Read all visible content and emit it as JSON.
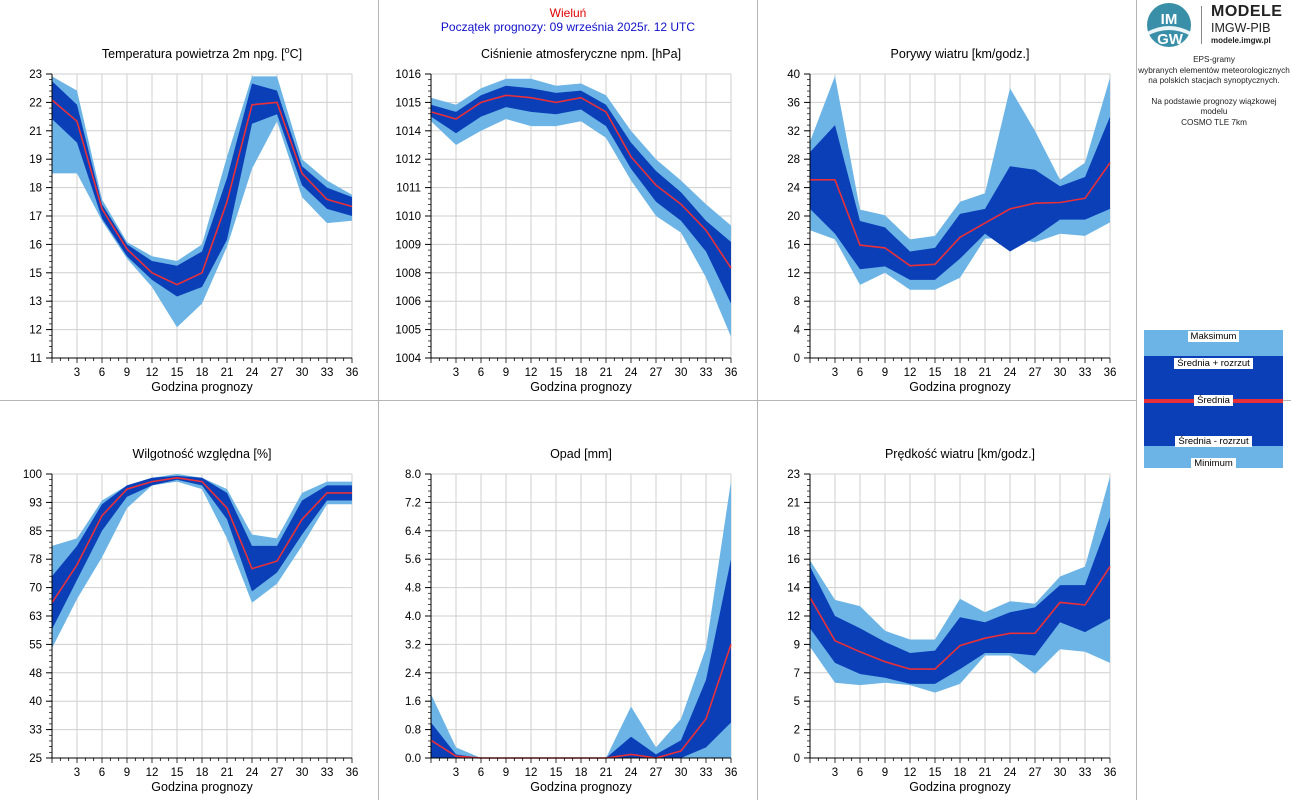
{
  "header": {
    "station": "Wieluń",
    "run": "Początek prognozy: 09 września 2025r. 12 UTC"
  },
  "branding": {
    "logo_text_top": "IM",
    "logo_text_bottom": "GW",
    "line1": "MODELE",
    "line2": "IMGW-PIB",
    "line3": "modele.imgw.pl"
  },
  "description": {
    "line1": "EPS-gramy",
    "line2": "wybranych elementów meteorologicznych",
    "line3": "na polskich stacjach  synoptycznych.",
    "line4": "Na podstawie prognozy wiązkowej modelu",
    "line5": "COSMO TLE 7km"
  },
  "legend": {
    "max": "Maksimum",
    "mean_plus": "Średnia + rozrzut",
    "mean": "Średnia",
    "mean_minus": "Średnia - rozrzut",
    "min": "Minimum"
  },
  "colors": {
    "outer_band": "#6cb4e6",
    "inner_band": "#0a3fb8",
    "mean_line": "#e8303a",
    "grid": "#cfcfcf"
  },
  "chart_data": [
    {
      "id": "temp",
      "type": "area",
      "title": "Temperatura powietrza 2m npg. [oC]",
      "xlabel": "Godzina prognozy",
      "x": [
        0,
        3,
        6,
        9,
        12,
        15,
        18,
        21,
        24,
        27,
        30,
        33,
        36
      ],
      "xticks": [
        3,
        6,
        9,
        12,
        15,
        18,
        21,
        24,
        27,
        30,
        33,
        36
      ],
      "ylim": [
        11,
        23
      ],
      "yticks": [
        "11",
        "12",
        "13",
        "15",
        "16",
        "17",
        "18",
        "19",
        "21",
        "22",
        "23"
      ],
      "series": [
        {
          "name": "Maksimum",
          "values": [
            22.9,
            22.3,
            17.7,
            15.9,
            15.3,
            15.1,
            15.8,
            19.5,
            22.9,
            22.9,
            19.4,
            18.5,
            17.9
          ]
        },
        {
          "name": "Średnia + rozrzut",
          "values": [
            22.7,
            21.7,
            17.5,
            15.8,
            15.1,
            14.9,
            15.5,
            18.6,
            22.6,
            22.3,
            19.1,
            18.2,
            17.8
          ]
        },
        {
          "name": "Średnia",
          "values": [
            21.9,
            21.0,
            17.3,
            15.6,
            14.6,
            14.1,
            14.6,
            17.6,
            21.7,
            21.8,
            18.8,
            17.7,
            17.4
          ]
        },
        {
          "name": "Średnia - rozrzut",
          "values": [
            21.1,
            20.1,
            16.9,
            15.3,
            14.3,
            13.6,
            14.0,
            16.0,
            20.9,
            21.3,
            18.3,
            17.3,
            17.0
          ]
        },
        {
          "name": "Minimum",
          "values": [
            18.8,
            18.8,
            16.8,
            15.2,
            14.0,
            12.3,
            13.3,
            15.7,
            19.0,
            21.0,
            17.8,
            16.7,
            16.8
          ]
        }
      ]
    },
    {
      "id": "pres",
      "type": "area",
      "title": "Ciśnienie atmosferyczne npm. [hPa]",
      "xlabel": "Godzina prognozy",
      "x": [
        0,
        3,
        6,
        9,
        12,
        15,
        18,
        21,
        24,
        27,
        30,
        33,
        36
      ],
      "xticks": [
        3,
        6,
        9,
        12,
        15,
        18,
        21,
        24,
        27,
        30,
        33,
        36
      ],
      "ylim": [
        1004,
        1016
      ],
      "yticks": [
        "1004",
        "1005",
        "1006",
        "1008",
        "1009",
        "1010",
        "1011",
        "1012",
        "1014",
        "1015",
        "1016"
      ],
      "series": [
        {
          "name": "Maksimum",
          "values": [
            1015.0,
            1014.7,
            1015.4,
            1015.8,
            1015.8,
            1015.5,
            1015.6,
            1015.1,
            1013.6,
            1012.4,
            1011.5,
            1010.5,
            1009.6
          ]
        },
        {
          "name": "Średnia + rozrzut",
          "values": [
            1014.7,
            1014.4,
            1015.1,
            1015.5,
            1015.4,
            1015.2,
            1015.3,
            1014.7,
            1013.1,
            1011.9,
            1011.0,
            1009.8,
            1008.9
          ]
        },
        {
          "name": "Średnia",
          "values": [
            1014.4,
            1014.1,
            1014.8,
            1015.1,
            1015.0,
            1014.8,
            1015.0,
            1014.4,
            1012.5,
            1011.3,
            1010.5,
            1009.4,
            1007.8
          ]
        },
        {
          "name": "Średnia - rozrzut",
          "values": [
            1014.2,
            1013.5,
            1014.2,
            1014.6,
            1014.4,
            1014.3,
            1014.5,
            1013.8,
            1012.0,
            1010.6,
            1009.8,
            1008.5,
            1006.3
          ]
        },
        {
          "name": "Minimum",
          "values": [
            1014.0,
            1013.0,
            1013.6,
            1014.1,
            1013.8,
            1013.8,
            1014.0,
            1013.3,
            1011.5,
            1010.0,
            1009.3,
            1007.4,
            1004.9
          ]
        }
      ]
    },
    {
      "id": "gust",
      "type": "area",
      "title": "Porywy wiatru [km/godz.]",
      "xlabel": "Godzina prognozy",
      "x": [
        0,
        3,
        6,
        9,
        12,
        15,
        18,
        21,
        24,
        27,
        30,
        33,
        36
      ],
      "xticks": [
        3,
        6,
        9,
        12,
        15,
        18,
        21,
        24,
        27,
        30,
        33,
        36
      ],
      "ylim": [
        0,
        40
      ],
      "yticks": [
        "0",
        "4",
        "8",
        "12",
        "16",
        "20",
        "24",
        "28",
        "32",
        "36",
        "40"
      ],
      "series": [
        {
          "name": "Maksimum",
          "values": [
            30.5,
            39.7,
            20.9,
            20.1,
            16.7,
            17.2,
            22.0,
            23.2,
            38.0,
            32.0,
            25.1,
            27.5,
            39.5
          ]
        },
        {
          "name": "Średnia + rozrzut",
          "values": [
            29.0,
            32.8,
            19.3,
            18.4,
            15.0,
            15.5,
            20.3,
            21.0,
            27.0,
            26.5,
            24.2,
            25.5,
            34.0
          ]
        },
        {
          "name": "Średnia",
          "values": [
            25.1,
            25.1,
            15.9,
            15.5,
            13.0,
            13.2,
            17.0,
            19.0,
            21.0,
            21.8,
            21.9,
            22.5,
            27.5
          ]
        },
        {
          "name": "Średnia - rozrzut",
          "values": [
            21.0,
            17.5,
            12.5,
            12.9,
            11.0,
            11.0,
            14.0,
            17.5,
            15.0,
            17.0,
            19.5,
            19.5,
            21.0
          ]
        },
        {
          "name": "Minimum",
          "values": [
            18.0,
            16.7,
            10.3,
            12.0,
            9.6,
            9.6,
            11.3,
            16.8,
            17.0,
            16.3,
            17.5,
            17.2,
            19.1
          ]
        }
      ]
    },
    {
      "id": "hum",
      "type": "area",
      "title": "Wilgotność względna [%]",
      "xlabel": "Godzina prognozy",
      "x": [
        0,
        3,
        6,
        9,
        12,
        15,
        18,
        21,
        24,
        27,
        30,
        33,
        36
      ],
      "xticks": [
        3,
        6,
        9,
        12,
        15,
        18,
        21,
        24,
        27,
        30,
        33,
        36
      ],
      "ylim": [
        25,
        100
      ],
      "yticks": [
        "25",
        "33",
        "40",
        "48",
        "55",
        "63",
        "70",
        "78",
        "85",
        "93",
        "100"
      ],
      "series": [
        {
          "name": "Maksimum",
          "values": [
            81,
            83,
            93,
            97,
            99,
            100,
            99,
            96,
            84,
            83,
            95,
            98,
            98
          ]
        },
        {
          "name": "Średnia + rozrzut",
          "values": [
            73,
            81,
            92,
            97,
            99,
            99.5,
            99,
            95,
            81,
            81,
            93,
            97,
            97
          ]
        },
        {
          "name": "Średnia",
          "values": [
            66,
            76,
            89,
            96,
            98,
            99,
            98,
            91,
            75,
            77,
            88,
            95,
            95
          ]
        },
        {
          "name": "Średnia - rozrzut",
          "values": [
            59,
            72,
            85,
            94,
            97,
            98.5,
            97,
            88,
            69,
            74,
            84,
            93,
            93
          ]
        },
        {
          "name": "Minimum",
          "values": [
            54,
            67,
            78,
            91,
            97,
            98,
            96,
            83,
            66,
            71,
            81,
            92,
            92
          ]
        }
      ]
    },
    {
      "id": "precip",
      "type": "area",
      "title": "Opad [mm]",
      "xlabel": "Godzina prognozy",
      "x": [
        0,
        3,
        6,
        9,
        12,
        15,
        18,
        21,
        24,
        27,
        30,
        33,
        36
      ],
      "xticks": [
        3,
        6,
        9,
        12,
        15,
        18,
        21,
        24,
        27,
        30,
        33,
        36
      ],
      "ylim": [
        0,
        8
      ],
      "yticks": [
        "0.0",
        "0.8",
        "1.6",
        "2.4",
        "3.2",
        "4.0",
        "4.8",
        "5.6",
        "6.4",
        "7.2",
        "8.0"
      ],
      "series": [
        {
          "name": "Maksimum",
          "values": [
            1.8,
            0.3,
            0,
            0,
            0,
            0,
            0,
            0,
            1.45,
            0.3,
            1.1,
            3.1,
            7.8
          ]
        },
        {
          "name": "Średnia + rozrzut",
          "values": [
            1.0,
            0.1,
            0,
            0,
            0,
            0,
            0,
            0,
            0.6,
            0.1,
            0.5,
            2.2,
            5.6
          ]
        },
        {
          "name": "Średnia",
          "values": [
            0.5,
            0.05,
            0,
            0,
            0,
            0,
            0,
            0,
            0.1,
            0,
            0.2,
            1.1,
            3.2
          ]
        },
        {
          "name": "Średnia - rozrzut",
          "values": [
            0,
            0,
            0,
            0,
            0,
            0,
            0,
            0,
            0,
            0,
            0,
            0.3,
            1.0
          ]
        },
        {
          "name": "Minimum",
          "values": [
            0,
            0,
            0,
            0,
            0,
            0,
            0,
            0,
            0,
            0,
            0,
            0,
            0
          ]
        }
      ]
    },
    {
      "id": "wind",
      "type": "area",
      "title": "Prędkość wiatru [km/godz.]",
      "xlabel": "Godzina prognozy",
      "x": [
        0,
        3,
        6,
        9,
        12,
        15,
        18,
        21,
        24,
        27,
        30,
        33,
        36
      ],
      "xticks": [
        3,
        6,
        9,
        12,
        15,
        18,
        21,
        24,
        27,
        30,
        33,
        36
      ],
      "ylim": [
        0,
        23
      ],
      "yticks": [
        "0",
        "2",
        "5",
        "7",
        "9",
        "12",
        "14",
        "16",
        "18",
        "21",
        "23"
      ],
      "series": [
        {
          "name": "Maksimum",
          "values": [
            16.0,
            12.8,
            12.3,
            10.3,
            9.6,
            9.6,
            12.9,
            11.8,
            12.7,
            12.5,
            14.7,
            15.5,
            22.8
          ]
        },
        {
          "name": "Średnia + rozrzut",
          "values": [
            15.5,
            11.5,
            10.5,
            9.4,
            8.5,
            8.7,
            11.4,
            11.0,
            11.8,
            12.2,
            14.0,
            14.0,
            19.5
          ]
        },
        {
          "name": "Średnia",
          "values": [
            13.0,
            9.5,
            8.6,
            7.8,
            7.2,
            7.2,
            9.1,
            9.7,
            10.1,
            10.1,
            12.6,
            12.4,
            15.5
          ]
        },
        {
          "name": "Średnia - rozrzut",
          "values": [
            10.5,
            7.7,
            6.8,
            6.5,
            6.0,
            6.0,
            7.2,
            8.5,
            8.5,
            8.3,
            11.0,
            10.2,
            11.3
          ]
        },
        {
          "name": "Minimum",
          "values": [
            9.0,
            6.1,
            5.9,
            6.1,
            5.9,
            5.3,
            6.0,
            8.3,
            8.3,
            6.8,
            8.8,
            8.6,
            7.7
          ]
        }
      ]
    }
  ]
}
